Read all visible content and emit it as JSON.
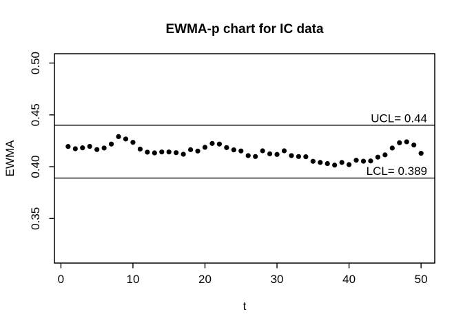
{
  "chart_data": {
    "type": "scatter",
    "title": "EWMA-p chart for IC data",
    "xlabel": "t",
    "ylabel": "EWMA",
    "x": [
      1,
      2,
      3,
      4,
      5,
      6,
      7,
      8,
      9,
      10,
      11,
      12,
      13,
      14,
      15,
      16,
      17,
      18,
      19,
      20,
      21,
      22,
      23,
      24,
      25,
      26,
      27,
      28,
      29,
      30,
      31,
      32,
      33,
      34,
      35,
      36,
      37,
      38,
      39,
      40,
      41,
      42,
      43,
      44,
      45,
      46,
      47,
      48,
      49,
      50
    ],
    "values": [
      0.4195,
      0.4173,
      0.4182,
      0.4196,
      0.4165,
      0.418,
      0.4218,
      0.429,
      0.4267,
      0.4235,
      0.417,
      0.414,
      0.4133,
      0.4142,
      0.4142,
      0.4135,
      0.412,
      0.4164,
      0.4151,
      0.4187,
      0.4224,
      0.4218,
      0.4184,
      0.4162,
      0.4152,
      0.4107,
      0.4098,
      0.4153,
      0.4124,
      0.4118,
      0.4153,
      0.4107,
      0.4098,
      0.4096,
      0.4052,
      0.4041,
      0.403,
      0.4015,
      0.4041,
      0.402,
      0.4062,
      0.4053,
      0.4055,
      0.4092,
      0.4114,
      0.418,
      0.4231,
      0.424,
      0.4209,
      0.4129
    ],
    "ucl": {
      "value": 0.44,
      "label": "UCL= 0.44"
    },
    "lcl": {
      "value": 0.389,
      "label": "LCL= 0.389"
    },
    "x_ticks": [
      0,
      10,
      20,
      30,
      40,
      50
    ],
    "y_ticks": [
      0.35,
      0.4,
      0.45,
      0.5
    ],
    "y_tick_labels": [
      "0.35",
      "0.40",
      "0.45",
      "0.50"
    ],
    "xlim": [
      -0.9,
      51.9
    ],
    "ylim": [
      0.307,
      0.509
    ],
    "grid": false,
    "legend": "none",
    "point_color": "#000000",
    "line_color": "#000000",
    "background": "#ffffff"
  }
}
